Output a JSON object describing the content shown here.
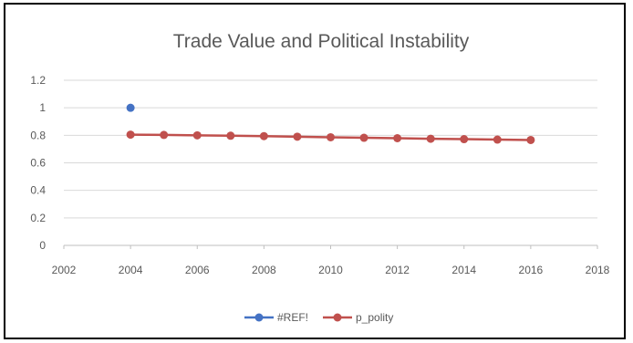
{
  "chart_data": {
    "type": "scatter",
    "title": "Trade Value and Political Instability",
    "xlabel": "",
    "ylabel": "",
    "xlim": [
      2002,
      2018
    ],
    "ylim": [
      0,
      1.2
    ],
    "x_ticks": [
      2002,
      2004,
      2006,
      2008,
      2010,
      2012,
      2014,
      2016,
      2018
    ],
    "y_ticks": [
      0,
      0.2,
      0.4,
      0.6,
      0.8,
      1,
      1.2
    ],
    "grid": true,
    "legend_position": "bottom",
    "series": [
      {
        "name": "#REF!",
        "color": "#4472c4",
        "line": false,
        "x": [
          2004
        ],
        "y": [
          1.0
        ]
      },
      {
        "name": "p_polity",
        "color": "#c0504d",
        "line": true,
        "x": [
          2004,
          2005,
          2006,
          2007,
          2008,
          2009,
          2010,
          2011,
          2012,
          2013,
          2014,
          2015,
          2016
        ],
        "y": [
          0.805,
          0.803,
          0.8,
          0.797,
          0.794,
          0.79,
          0.786,
          0.782,
          0.779,
          0.775,
          0.772,
          0.769,
          0.766
        ]
      }
    ]
  }
}
